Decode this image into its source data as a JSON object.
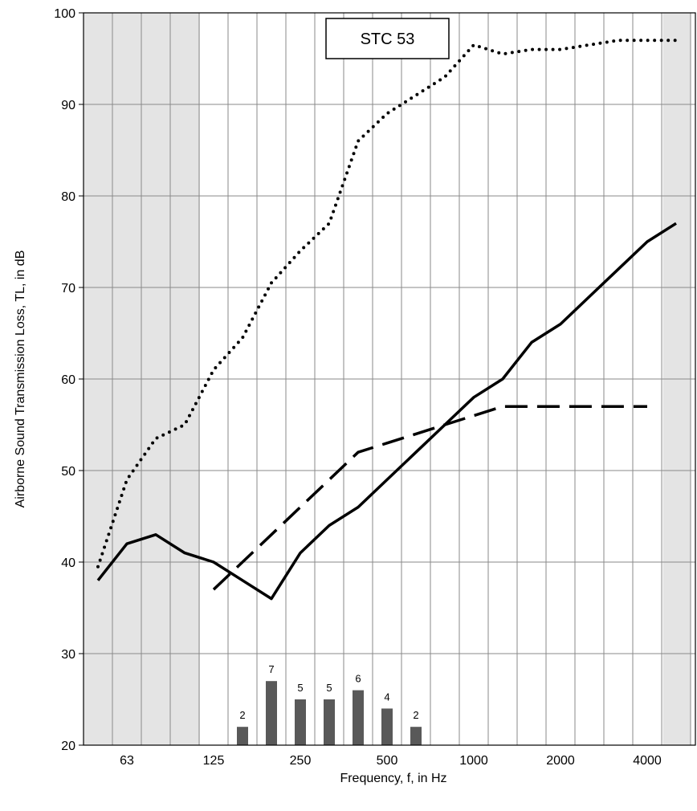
{
  "chart_data": {
    "type": "line",
    "xlabel": "Frequency, f, in Hz",
    "ylabel": "Airborne Sound Transmission Loss, TL, in dB",
    "ylim": [
      20,
      100
    ],
    "yticks": [
      20,
      30,
      40,
      50,
      60,
      70,
      80,
      90,
      100
    ],
    "x_scale": "log (1/3-octave bands)",
    "x": [
      50,
      63,
      80,
      100,
      125,
      160,
      200,
      250,
      315,
      400,
      500,
      630,
      800,
      1000,
      1250,
      1600,
      2000,
      2500,
      3150,
      4000,
      5000
    ],
    "x_tick_labels": [
      "63",
      "125",
      "250",
      "500",
      "1000",
      "2000",
      "4000"
    ],
    "x_tick_values": [
      63,
      125,
      250,
      500,
      1000,
      2000,
      4000
    ],
    "shaded_ranges": [
      [
        44.5,
        112
      ],
      [
        4500,
        5600
      ]
    ],
    "annotation": "STC 53",
    "grid": true,
    "series": [
      {
        "style": "solid",
        "x": [
          50,
          63,
          80,
          100,
          125,
          160,
          200,
          250,
          315,
          400,
          500,
          630,
          800,
          1000,
          1250,
          1600,
          2000,
          2500,
          3150,
          4000,
          5000
        ],
        "values": [
          38,
          42,
          43,
          41,
          40,
          38,
          36,
          41,
          44,
          46,
          49,
          52,
          55,
          58,
          60,
          64,
          66,
          69,
          72,
          75,
          77
        ]
      },
      {
        "style": "dashed",
        "x": [
          125,
          160,
          200,
          250,
          315,
          400,
          500,
          630,
          800,
          1000,
          1250,
          1600,
          2000,
          2500,
          3150,
          4000
        ],
        "values": [
          37,
          40,
          43,
          46,
          49,
          52,
          53,
          54,
          55,
          56,
          57,
          57,
          57,
          57,
          57,
          57
        ]
      },
      {
        "style": "dotted",
        "x": [
          50,
          63,
          80,
          100,
          125,
          160,
          200,
          250,
          315,
          400,
          500,
          630,
          800,
          1000,
          1250,
          1600,
          2000,
          2500,
          3150,
          4000,
          5000
        ],
        "values": [
          39.5,
          49,
          53.5,
          55,
          61,
          64.5,
          70.5,
          74,
          77,
          86,
          89,
          91,
          93,
          96.5,
          95.5,
          96,
          96,
          96.5,
          97,
          97,
          97
        ]
      }
    ],
    "deficiency_bars": {
      "x": [
        160,
        200,
        250,
        315,
        400,
        500,
        630
      ],
      "values": [
        22,
        27,
        25,
        25,
        26,
        24,
        22
      ],
      "labels": [
        "2",
        "7",
        "5",
        "5",
        "6",
        "4",
        "2"
      ]
    }
  }
}
